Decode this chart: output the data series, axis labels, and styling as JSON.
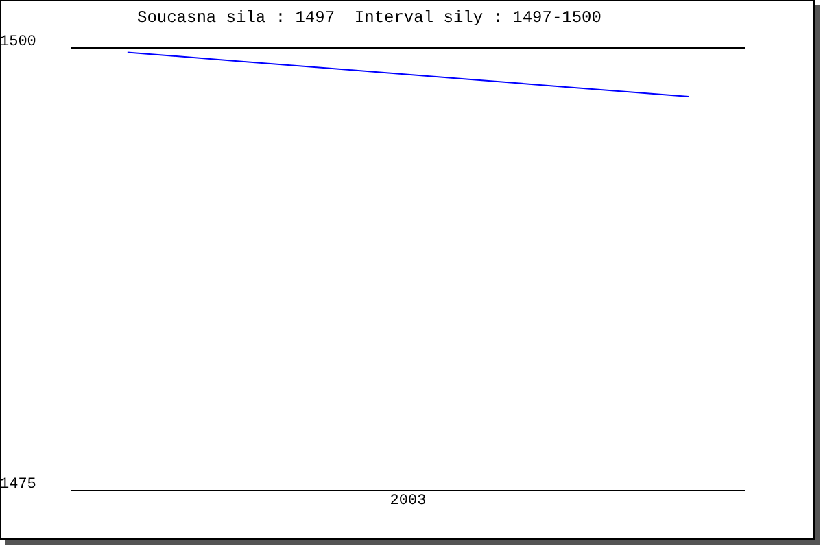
{
  "chart_data": {
    "type": "line",
    "title": "Soucasna sila : 1497  Interval sily : 1497-1500",
    "xlabel": "2003",
    "categories": [
      null,
      null,
      null,
      null,
      null,
      null
    ],
    "series": [
      {
        "color": "#0000ff",
        "values": [
          1499.75,
          1499.25,
          1498.75,
          1498.25,
          1497.75,
          1497.25
        ]
      }
    ],
    "ylim": [
      1475,
      1500
    ],
    "yticks": [
      1475,
      1500
    ],
    "grid": "y",
    "marker": "none",
    "line_style": "solid"
  }
}
